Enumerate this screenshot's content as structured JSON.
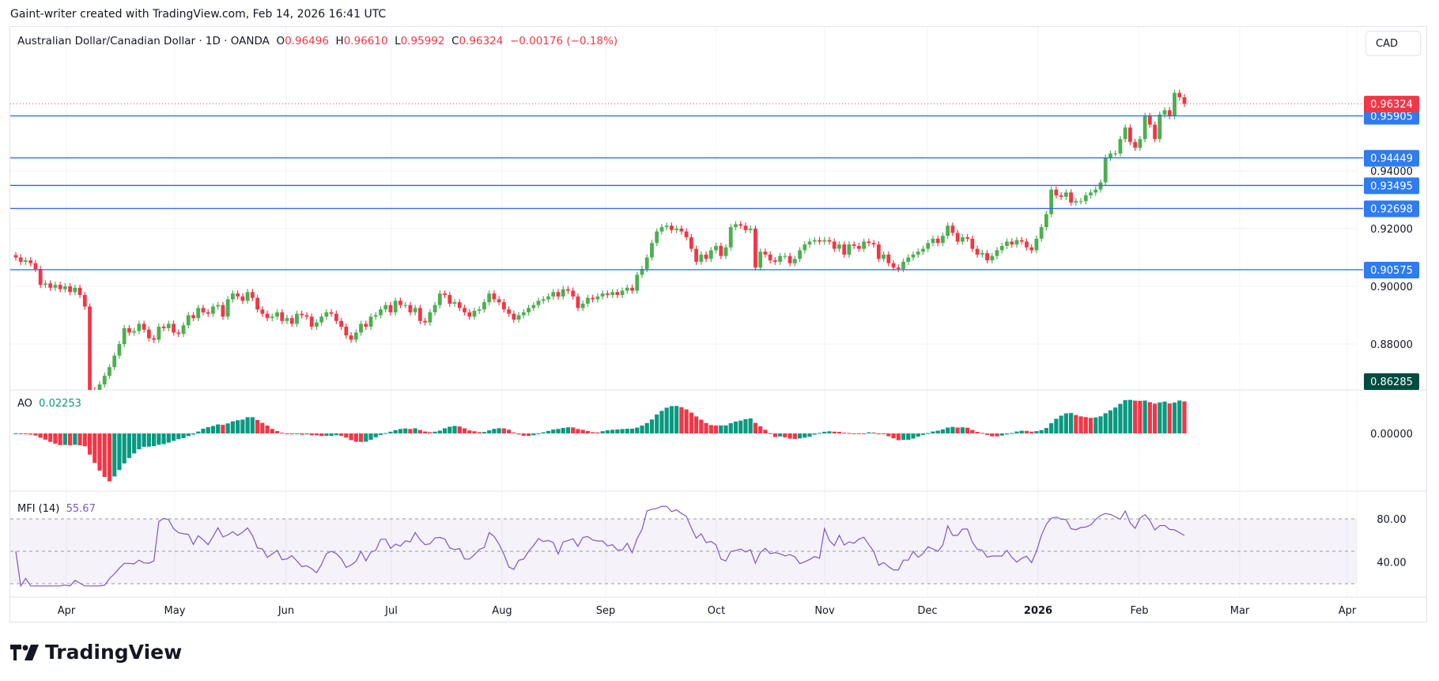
{
  "header": {
    "attribution": "Gaint-writer created with TradingView.com, Feb 14, 2026 16:41 UTC"
  },
  "legend": {
    "symbol": "Australian Dollar/Canadian Dollar · 1D · OANDA",
    "o_label": "O",
    "o": "0.96496",
    "h_label": "H",
    "h": "0.96610",
    "l_label": "L",
    "l": "0.95992",
    "c_label": "C",
    "c": "0.96324",
    "change": "−0.00176 (−0.18%)"
  },
  "currency_button": "CAD",
  "indicators": {
    "ao": {
      "name": "AO",
      "value": "0.02253"
    },
    "mfi": {
      "name": "MFI (14)",
      "value": "55.67"
    }
  },
  "logo": {
    "text": "TradingView"
  },
  "colors": {
    "up": "#4caf50",
    "down": "#f23645",
    "level": "#2962ff",
    "ao_up": "#089981",
    "ao_down": "#f23645",
    "mfi": "#7e57c2",
    "last_price": "#f23645",
    "low_label": "#004d40"
  },
  "chart_data": {
    "type": "candlestick",
    "title": "Australian Dollar/Canadian Dollar · 1D · OANDA",
    "ylim": [
      0.8595,
      0.9785
    ],
    "grid": true,
    "y_ticks": [
      "0.94000",
      "0.92000",
      "0.90000",
      "0.88000"
    ],
    "y_tick_values": [
      0.94,
      0.92,
      0.9,
      0.88
    ],
    "x_ticks": [
      "Apr",
      "May",
      "Jun",
      "Jul",
      "Aug",
      "Sep",
      "Oct",
      "Nov",
      "Dec",
      "2026",
      "Feb",
      "Mar",
      "Apr"
    ],
    "closes": [
      0.91,
      0.9085,
      0.909,
      0.908,
      0.906,
      0.9005,
      0.901,
      0.8995,
      0.9005,
      0.899,
      0.9,
      0.898,
      0.8995,
      0.897,
      0.893,
      0.864,
      0.862,
      0.866,
      0.869,
      0.872,
      0.876,
      0.88,
      0.8855,
      0.884,
      0.8845,
      0.887,
      0.885,
      0.882,
      0.8815,
      0.886,
      0.8855,
      0.887,
      0.884,
      0.8835,
      0.8865,
      0.89,
      0.889,
      0.8925,
      0.891,
      0.8905,
      0.893,
      0.8935,
      0.8895,
      0.8955,
      0.8975,
      0.8965,
      0.895,
      0.898,
      0.896,
      0.892,
      0.8905,
      0.889,
      0.8895,
      0.891,
      0.888,
      0.889,
      0.887,
      0.8905,
      0.89,
      0.8895,
      0.886,
      0.8875,
      0.8895,
      0.891,
      0.8905,
      0.888,
      0.886,
      0.883,
      0.8815,
      0.884,
      0.887,
      0.886,
      0.8895,
      0.89,
      0.892,
      0.8935,
      0.891,
      0.895,
      0.8935,
      0.8935,
      0.891,
      0.8925,
      0.888,
      0.8875,
      0.891,
      0.8935,
      0.8975,
      0.897,
      0.894,
      0.8945,
      0.8925,
      0.891,
      0.8895,
      0.8915,
      0.892,
      0.8945,
      0.8975,
      0.8955,
      0.8945,
      0.892,
      0.8905,
      0.8885,
      0.89,
      0.891,
      0.8925,
      0.8935,
      0.895,
      0.8955,
      0.8965,
      0.898,
      0.8965,
      0.899,
      0.8985,
      0.8965,
      0.8925,
      0.894,
      0.896,
      0.8955,
      0.8965,
      0.8975,
      0.897,
      0.898,
      0.897,
      0.8985,
      0.8995,
      0.8985,
      0.904,
      0.906,
      0.91,
      0.915,
      0.919,
      0.9205,
      0.921,
      0.9195,
      0.92,
      0.919,
      0.917,
      0.913,
      0.9085,
      0.911,
      0.9095,
      0.9125,
      0.914,
      0.9105,
      0.9135,
      0.9205,
      0.9215,
      0.921,
      0.9195,
      0.92,
      0.9065,
      0.912,
      0.911,
      0.909,
      0.9085,
      0.9105,
      0.9105,
      0.908,
      0.9095,
      0.9125,
      0.9145,
      0.9155,
      0.916,
      0.9155,
      0.916,
      0.9155,
      0.913,
      0.9145,
      0.911,
      0.9145,
      0.914,
      0.913,
      0.9155,
      0.915,
      0.9145,
      0.9095,
      0.911,
      0.908,
      0.9065,
      0.906,
      0.9085,
      0.91,
      0.911,
      0.912,
      0.913,
      0.915,
      0.9165,
      0.915,
      0.9175,
      0.921,
      0.9185,
      0.9155,
      0.917,
      0.9165,
      0.913,
      0.911,
      0.9115,
      0.909,
      0.9105,
      0.9125,
      0.914,
      0.9155,
      0.9145,
      0.916,
      0.9155,
      0.9135,
      0.9125,
      0.9165,
      0.9205,
      0.925,
      0.9335,
      0.9315,
      0.931,
      0.9325,
      0.929,
      0.9295,
      0.9295,
      0.9315,
      0.9325,
      0.9335,
      0.936,
      0.9445,
      0.946,
      0.946,
      0.951,
      0.955,
      0.95,
      0.948,
      0.951,
      0.959,
      0.956,
      0.951,
      0.9595,
      0.961,
      0.959,
      0.967,
      0.9655,
      0.9632
    ],
    "levels": [
      0.95905,
      0.94449,
      0.93495,
      0.92698,
      0.90575
    ],
    "level_labels": [
      "0.95905",
      "0.94449",
      "0.93495",
      "0.92698",
      "0.90575"
    ],
    "last_price": 0.96324,
    "last_price_label": "0.96324",
    "low_marker": 0.86285,
    "low_marker_label": "0.86285",
    "ao_axis": {
      "tick_label": "0.00000",
      "tick_value": 0
    },
    "mfi_axis": {
      "tick_labels": [
        "80.00",
        "40.00"
      ],
      "tick_values": [
        80,
        40
      ],
      "band": [
        20,
        80
      ],
      "mid": 50
    }
  }
}
